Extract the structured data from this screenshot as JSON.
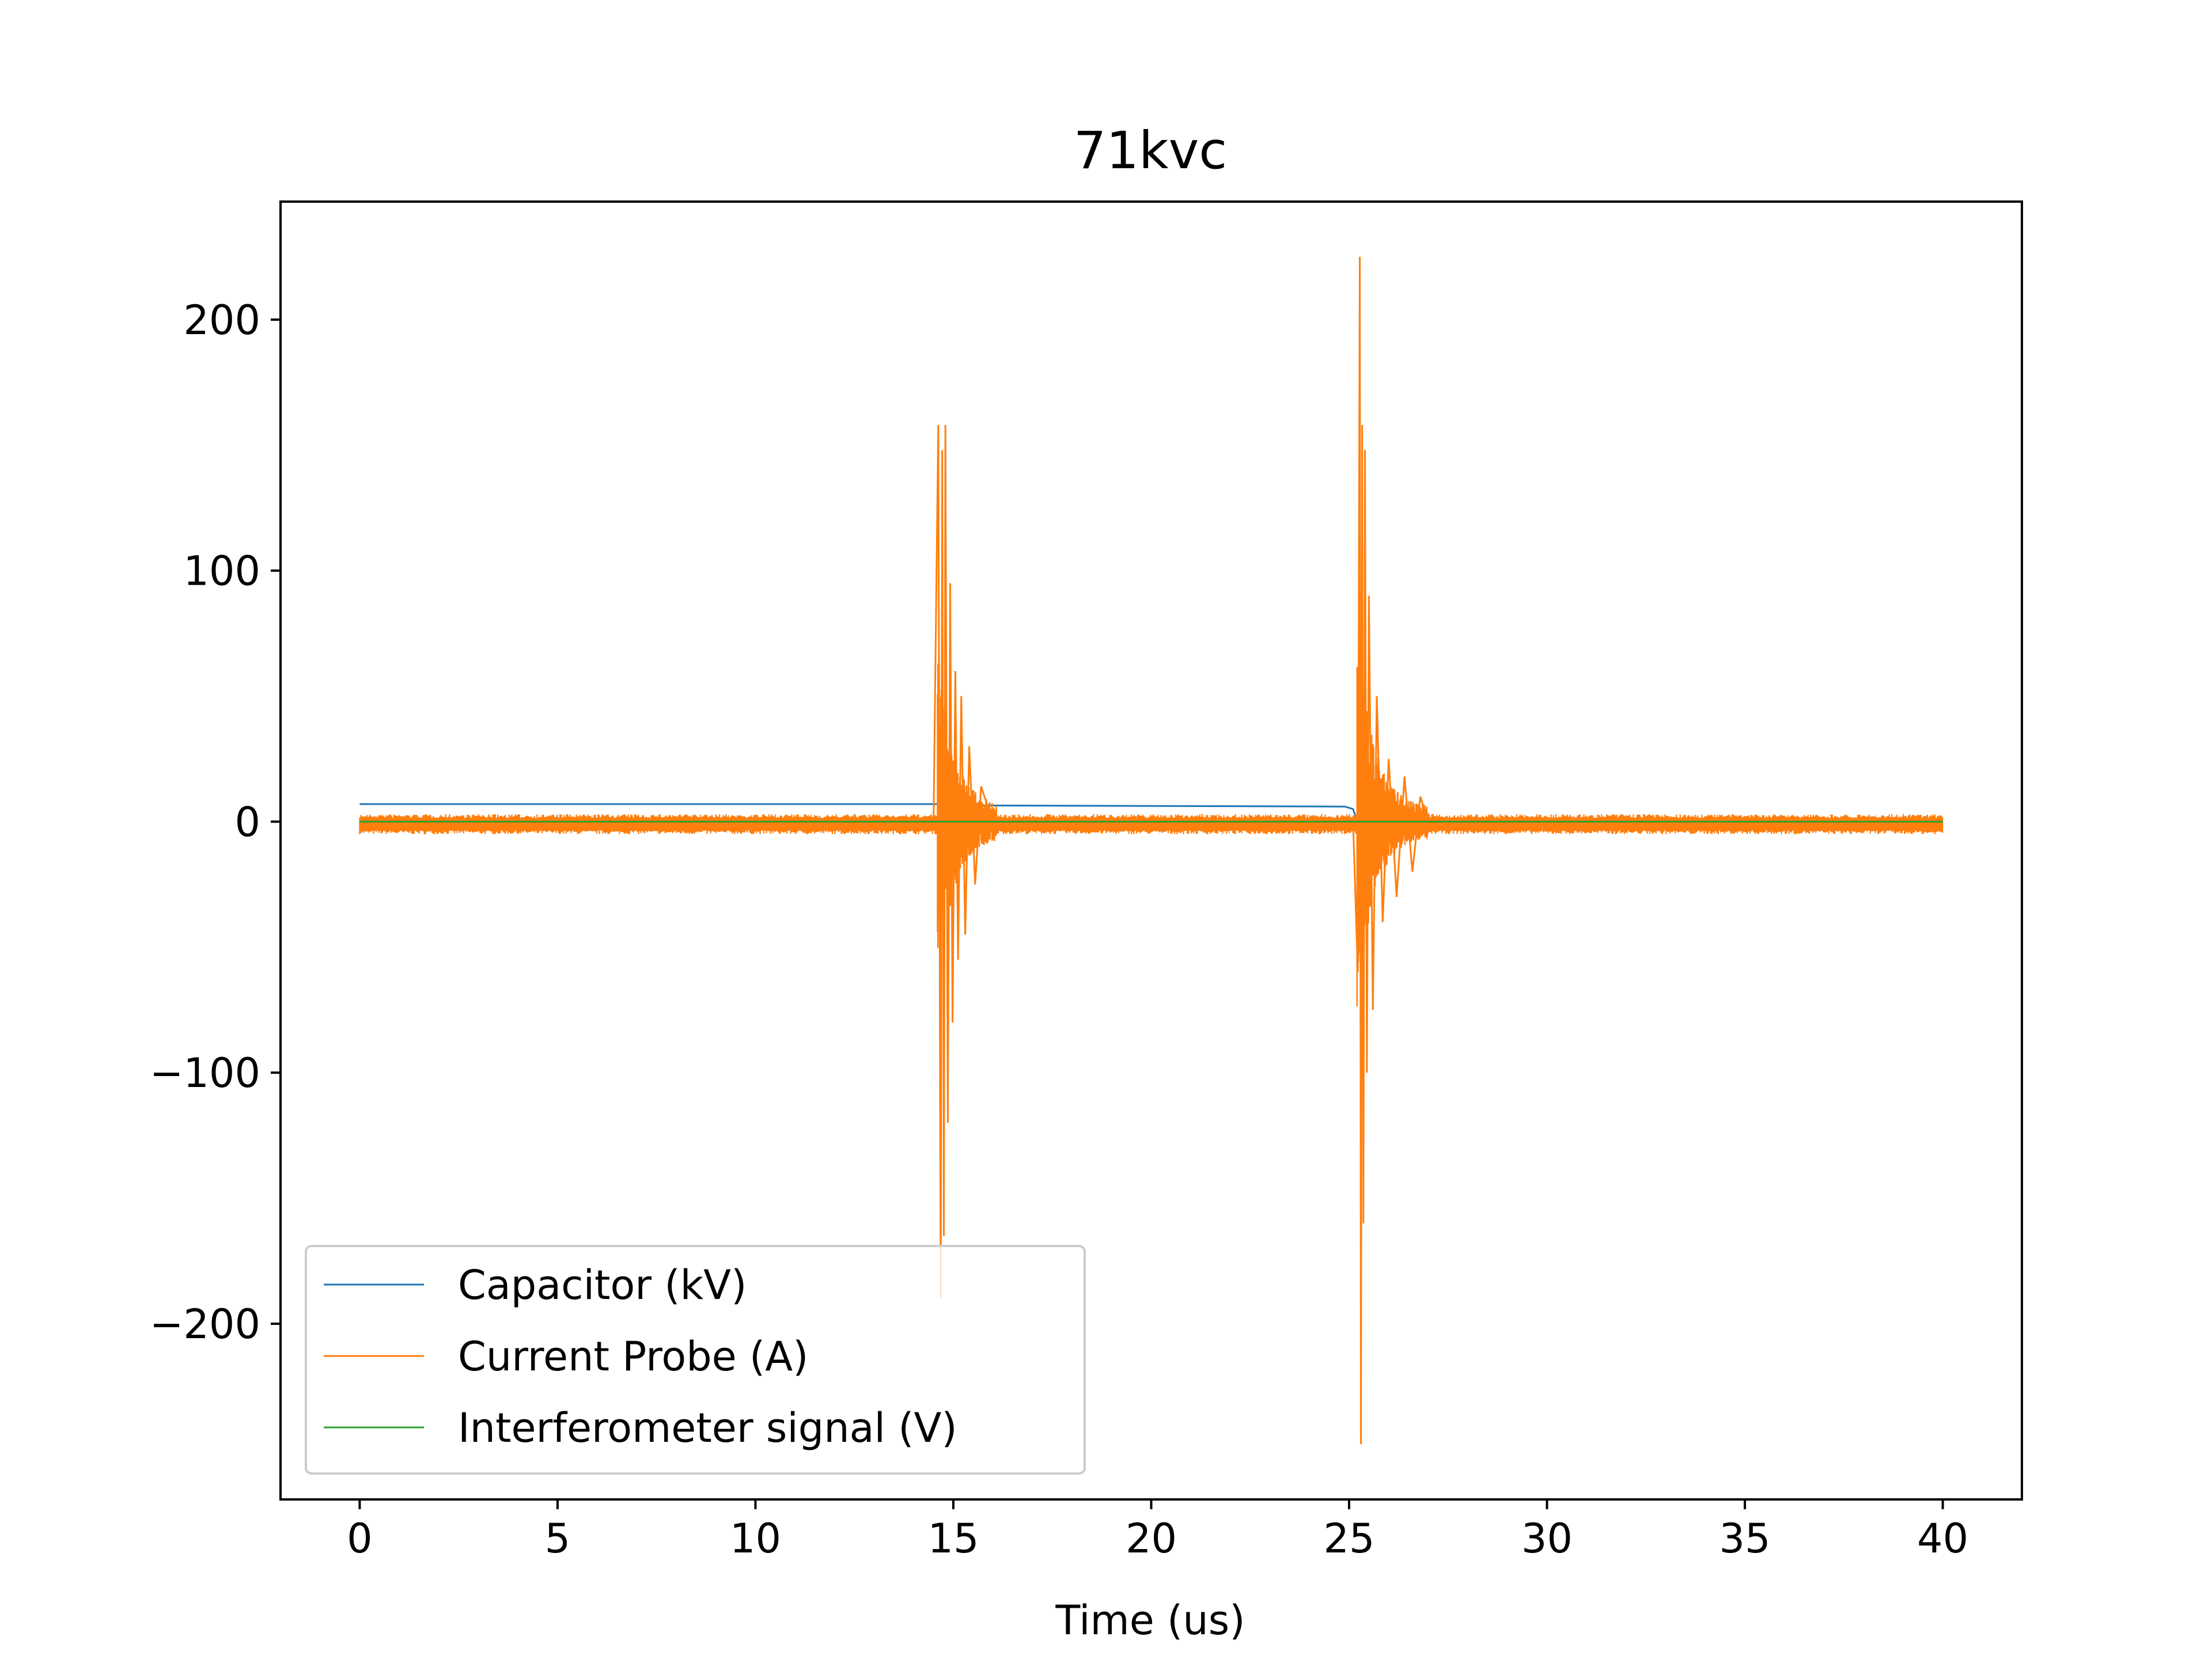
{
  "chart_data": {
    "type": "line",
    "title": "71kvc",
    "xlabel": "Time (us)",
    "ylabel": "",
    "xlim": [
      -2,
      42
    ],
    "ylim": [
      -270,
      247
    ],
    "xticks": [
      0,
      5,
      10,
      15,
      20,
      25,
      30,
      35,
      40
    ],
    "yticks": [
      -200,
      -100,
      0,
      100,
      200
    ],
    "ytick_labels": [
      "−200",
      "−100",
      "0",
      "100",
      "200"
    ],
    "grid": false,
    "legend_position": "lower left",
    "series": [
      {
        "name": "Capacitor (kV)",
        "color": "#1f77b4",
        "x": [
          0,
          14.6,
          14.8,
          24.9,
          25.1,
          25.2,
          40
        ],
        "y": [
          7,
          7,
          6.5,
          6,
          5,
          0.5,
          0
        ]
      },
      {
        "name": "Current Probe (A)",
        "color": "#ff7f0e",
        "noise_band": [
          -5,
          3
        ],
        "x": [
          0,
          14.5,
          14.62,
          14.68,
          14.72,
          14.76,
          14.8,
          14.86,
          14.92,
          14.98,
          15.05,
          15.12,
          15.2,
          15.3,
          15.4,
          15.55,
          15.7,
          16.0,
          25.1,
          25.22,
          25.27,
          25.3,
          25.33,
          25.36,
          25.4,
          25.45,
          25.5,
          25.6,
          25.7,
          25.85,
          26.0,
          26.2,
          26.4,
          26.6,
          26.8,
          27.0,
          40
        ],
        "y": [
          0,
          0,
          158,
          -190,
          148,
          -165,
          158,
          -120,
          95,
          -80,
          60,
          -55,
          50,
          -45,
          30,
          -25,
          14,
          0,
          0,
          -60,
          225,
          -248,
          158,
          -160,
          148,
          -100,
          90,
          -75,
          50,
          -40,
          25,
          -30,
          18,
          -20,
          10,
          0,
          0
        ]
      },
      {
        "name": "Interferometer signal (V)",
        "color": "#2ca02c",
        "x": [
          0,
          40
        ],
        "y": [
          0,
          0
        ]
      }
    ]
  }
}
